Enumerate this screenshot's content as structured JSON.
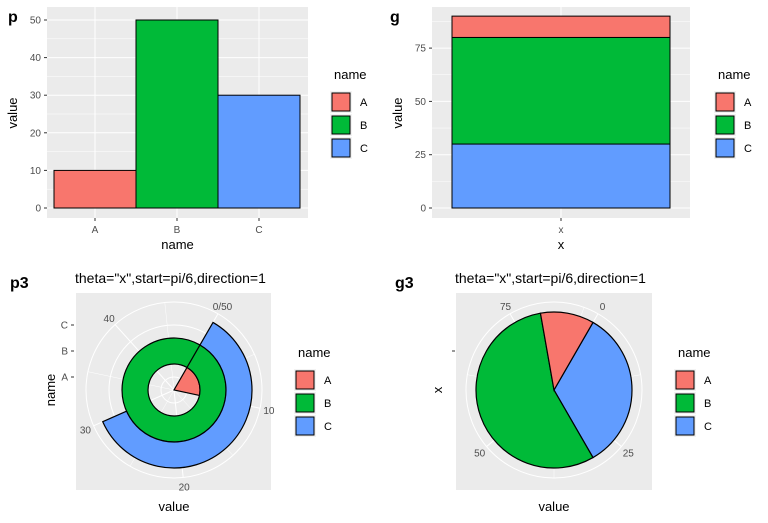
{
  "colors": {
    "A": "#F8766D",
    "B": "#00BA38",
    "C": "#619CFF",
    "panel": "#EBEBEB",
    "grid": "#FFFFFF"
  },
  "chart_data": [
    {
      "tag": "p",
      "type": "bar",
      "title": "",
      "categories": [
        "A",
        "B",
        "C"
      ],
      "values": [
        10,
        50,
        30
      ],
      "xlabel": "name",
      "ylabel": "value",
      "ylim": [
        0,
        52
      ],
      "yticks": [
        0,
        10,
        20,
        30,
        40,
        50
      ],
      "legend": {
        "title": "name",
        "entries": [
          "A",
          "B",
          "C"
        ],
        "position": "right"
      }
    },
    {
      "tag": "g",
      "type": "bar",
      "stacked": true,
      "title": "",
      "categories": [
        "x"
      ],
      "series": [
        {
          "name": "A",
          "values": [
            10
          ]
        },
        {
          "name": "B",
          "values": [
            50
          ]
        },
        {
          "name": "C",
          "values": [
            30
          ]
        }
      ],
      "xlabel": "x",
      "ylabel": "value",
      "ylim": [
        0,
        92
      ],
      "yticks": [
        0,
        25,
        50,
        75
      ],
      "legend": {
        "title": "name",
        "entries": [
          "A",
          "B",
          "C"
        ],
        "position": "right"
      }
    },
    {
      "tag": "p3",
      "type": "bar",
      "coord": "polar",
      "title": "theta=\"x\",start=pi/6,direction=1",
      "categories": [
        "A",
        "B",
        "C"
      ],
      "values": [
        10,
        50,
        30
      ],
      "xlabel": "value",
      "ylabel": "name",
      "theta_ticks": [
        "0/50",
        "10",
        "20",
        "30",
        "40"
      ],
      "theta_max": 50,
      "legend": {
        "title": "name",
        "entries": [
          "A",
          "B",
          "C"
        ],
        "position": "right"
      }
    },
    {
      "tag": "g3",
      "type": "pie",
      "title": "theta=\"x\",start=pi/6,direction=1",
      "categories": [
        "A",
        "B",
        "C"
      ],
      "values": [
        10,
        50,
        30
      ],
      "xlabel": "value",
      "ylabel": "x",
      "theta_ticks": [
        "0",
        "25",
        "50",
        "75"
      ],
      "theta_max": 90,
      "legend": {
        "title": "name",
        "entries": [
          "A",
          "B",
          "C"
        ],
        "position": "right"
      }
    }
  ]
}
